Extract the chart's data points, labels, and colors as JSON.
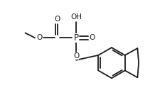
{
  "bg_color": "#ffffff",
  "line_color": "#1a1a1a",
  "line_width": 1.3,
  "font_size": 7.5,
  "figsize": [
    2.18,
    1.41
  ],
  "dpi": 100,
  "xlim": [
    0,
    218
  ],
  "ylim": [
    0,
    141
  ]
}
